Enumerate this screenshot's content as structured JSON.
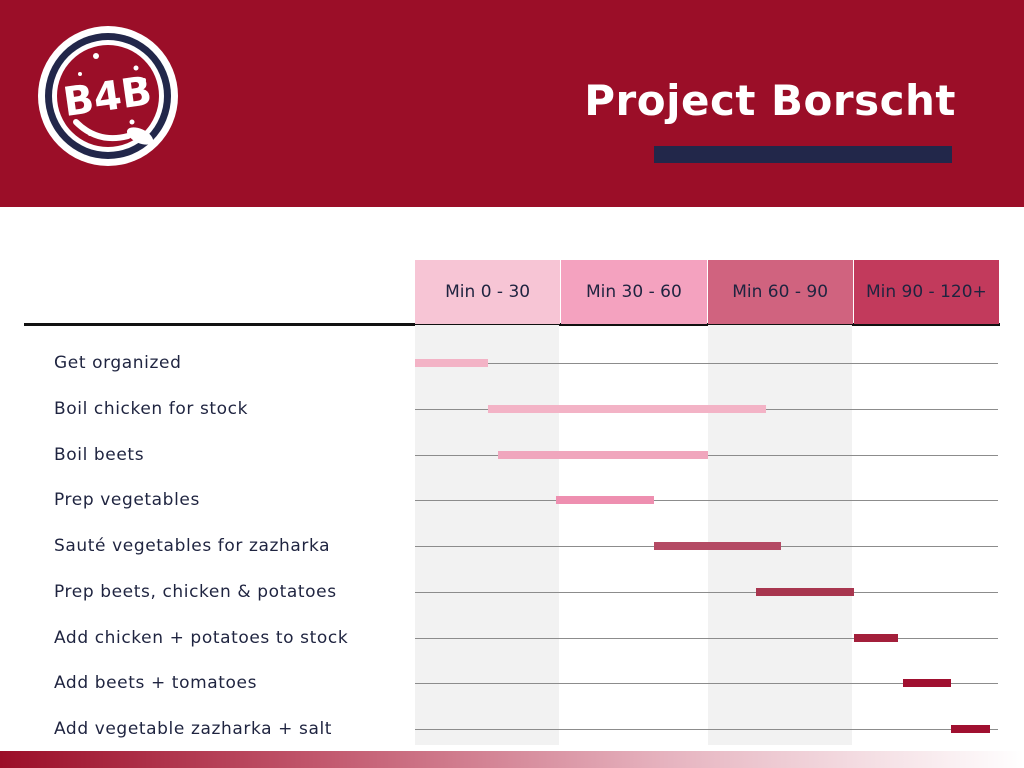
{
  "title": "Project Borscht",
  "logo": {
    "text": "B4B",
    "icon": "soup-bowl-spoon-logo"
  },
  "colors": {
    "brand": "#9b0e28",
    "navy": "#22274a"
  },
  "chart_data": {
    "type": "gantt",
    "x_unit": "minutes",
    "xlim": [
      0,
      120
    ],
    "periods": [
      {
        "label": "Min 0 - 30",
        "start": 0,
        "end": 30,
        "color": "#f7c5d5"
      },
      {
        "label": "Min 30 - 60",
        "start": 30,
        "end": 60,
        "color": "#f4a2bf"
      },
      {
        "label": "Min 60 - 90",
        "start": 60,
        "end": 90,
        "color": "#d0637f"
      },
      {
        "label": "Min 90 - 120+",
        "start": 90,
        "end": 120,
        "color": "#c23a5c"
      }
    ],
    "tasks": [
      {
        "label": "Get organized",
        "start": 0,
        "end": 15,
        "color": "#f3b3c6"
      },
      {
        "label": "Boil chicken for stock",
        "start": 15,
        "end": 72,
        "color": "#f3b3c6"
      },
      {
        "label": "Boil beets",
        "start": 17,
        "end": 60,
        "color": "#f0a6bd"
      },
      {
        "label": "Prep vegetables",
        "start": 29,
        "end": 49,
        "color": "#ee8fb0"
      },
      {
        "label": "Sauté vegetables for zazharka",
        "start": 49,
        "end": 75,
        "color": "#b44a64"
      },
      {
        "label": "Prep beets, chicken & potatoes",
        "start": 70,
        "end": 90,
        "color": "#a8364f"
      },
      {
        "label": "Add chicken + potatoes to stock",
        "start": 90,
        "end": 99,
        "color": "#a31f3b"
      },
      {
        "label": "Add beets + tomatoes",
        "start": 100,
        "end": 110,
        "color": "#a01030"
      },
      {
        "label": "Add vegetable zazharka + salt",
        "start": 110,
        "end": 118,
        "color": "#a01030"
      }
    ]
  }
}
